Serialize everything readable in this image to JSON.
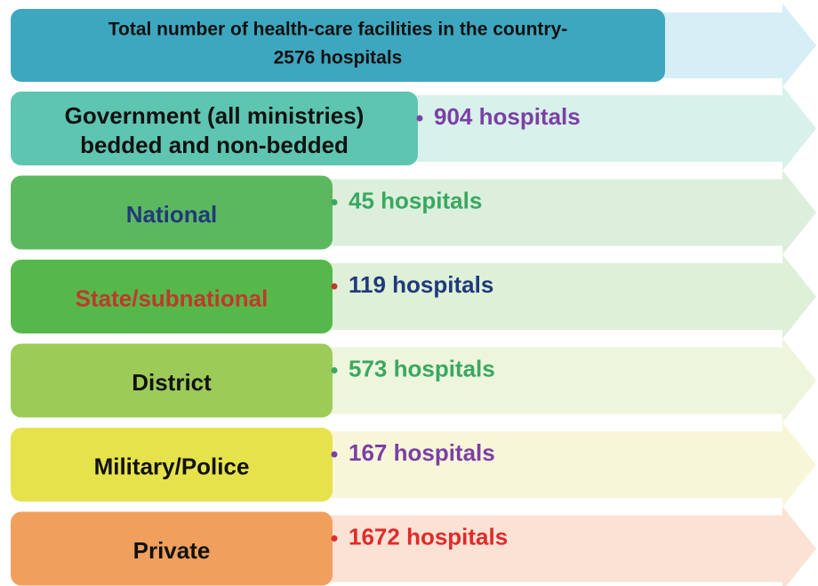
{
  "title": {
    "lines": [
      "Total number of health-care facilities in the country-",
      "2576 hospitals"
    ]
  },
  "rows": [
    {
      "label": [
        "Government (all ministries)",
        "bedded and non-bedded"
      ],
      "value": "904 hospitals"
    },
    {
      "label": [
        "National"
      ],
      "value": "45 hospitals"
    },
    {
      "label": [
        "State/subnational"
      ],
      "value": "119 hospitals"
    },
    {
      "label": [
        "District"
      ],
      "value": "573 hospitals"
    },
    {
      "label": [
        "Military/Police"
      ],
      "value": "167 hospitals"
    },
    {
      "label": [
        "Private"
      ],
      "value": "1672 hospitals"
    }
  ]
}
